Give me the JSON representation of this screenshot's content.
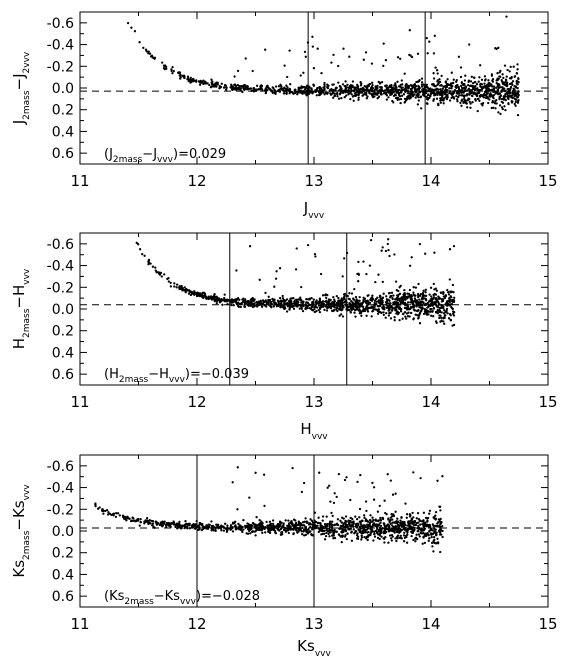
{
  "chart_data": [
    {
      "type": "scatter",
      "xlabel": {
        "main": "J",
        "sub": "vvv"
      },
      "ylabel": {
        "p1": "J",
        "s1": "2mass",
        "op": "−J",
        "s2": "2vvv"
      },
      "annotation": {
        "open": "(J",
        "s1": "2mass",
        "mid": "−J",
        "s2": "vvv",
        "close": ")=0.029"
      },
      "xlim": [
        11,
        15
      ],
      "ylim": [
        0.7,
        -0.7
      ],
      "xticks": [
        "11",
        "12",
        "13",
        "14",
        "15"
      ],
      "yticks": [
        "-0.6",
        "-0.4",
        "-0.2",
        "0.0",
        "0.2",
        "0.4",
        "0.6"
      ],
      "ytick_values": [
        -0.6,
        -0.4,
        -0.2,
        0.0,
        0.2,
        0.4,
        0.6
      ],
      "mean_offset": 0.029,
      "vertical_lines": [
        12.95,
        13.95
      ],
      "trend": {
        "x_start": 11.4,
        "bright_offset": -0.65,
        "bright_decay": 3.2,
        "faint_mag": 14.75
      },
      "point_count": 1500,
      "seed": 11
    },
    {
      "type": "scatter",
      "xlabel": {
        "main": "H",
        "sub": "vvv"
      },
      "ylabel": {
        "p1": "H",
        "s1": "2mass",
        "op": "−H",
        "s2": "vvv"
      },
      "annotation": {
        "open": "(H",
        "s1": "2mass",
        "mid": "−H",
        "s2": "vvv",
        "close": ")=−0.039"
      },
      "xlim": [
        11,
        15
      ],
      "ylim": [
        0.7,
        -0.7
      ],
      "xticks": [
        "11",
        "12",
        "13",
        "14",
        "15"
      ],
      "yticks": [
        "-0.6",
        "-0.4",
        "-0.2",
        "0.0",
        "0.2",
        "0.4",
        "0.6"
      ],
      "ytick_values": [
        -0.6,
        -0.4,
        -0.2,
        0.0,
        0.2,
        0.4,
        0.6
      ],
      "mean_offset": -0.039,
      "vertical_lines": [
        12.28,
        13.28
      ],
      "trend": {
        "x_start": 11.45,
        "bright_offset": -0.65,
        "bright_decay": 3.5,
        "faint_mag": 14.2
      },
      "point_count": 1350,
      "seed": 23
    },
    {
      "type": "scatter",
      "xlabel": {
        "main": "Ks",
        "sub": "vvv"
      },
      "ylabel": {
        "p1": "Ks",
        "s1": "2mass",
        "op": "−Ks",
        "s2": "vvv"
      },
      "annotation": {
        "open": "(Ks",
        "s1": "2mass",
        "mid": "−Ks",
        "s2": "vvv",
        "close": ")=−0.028"
      },
      "xlim": [
        11,
        15
      ],
      "ylim": [
        0.7,
        -0.7
      ],
      "xticks": [
        "11",
        "12",
        "13",
        "14",
        "15"
      ],
      "yticks": [
        "-0.6",
        "-0.4",
        "-0.2",
        "0.0",
        "0.2",
        "0.4",
        "0.6"
      ],
      "ytick_values": [
        -0.6,
        -0.4,
        -0.2,
        0.0,
        0.2,
        0.4,
        0.6
      ],
      "mean_offset": -0.028,
      "vertical_lines": [
        12.0,
        13.0
      ],
      "trend": {
        "x_start": 11.0,
        "bright_offset": -0.3,
        "bright_decay": 3.0,
        "faint_mag": 14.1
      },
      "point_count": 1350,
      "seed": 37
    }
  ]
}
